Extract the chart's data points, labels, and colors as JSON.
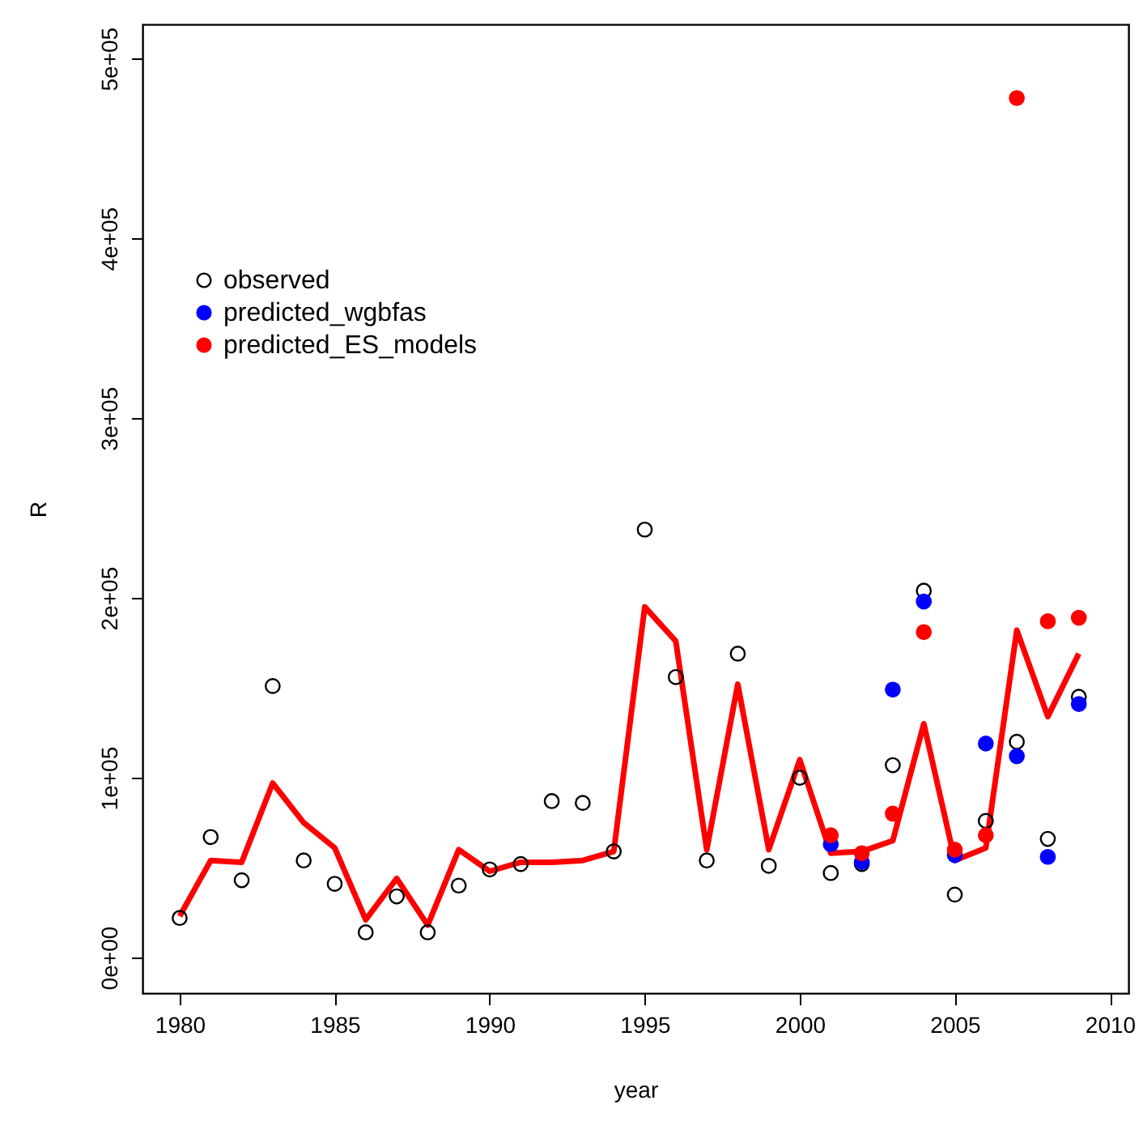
{
  "chart_data": {
    "type": "scatter",
    "xlabel": "year",
    "ylabel": "R",
    "x": [
      1980,
      1981,
      1982,
      1983,
      1984,
      1985,
      1986,
      1987,
      1988,
      1989,
      1990,
      1991,
      1992,
      1993,
      1994,
      1995,
      1996,
      1997,
      1998,
      1999,
      2000,
      2001,
      2002,
      2003,
      2004,
      2005,
      2006,
      2007,
      2008,
      2009
    ],
    "series": [
      {
        "type": "line",
        "marker": "none",
        "color": "#ff0000",
        "values": [
          23000,
          54000,
          53000,
          97000,
          75000,
          61000,
          21000,
          44000,
          18000,
          60000,
          48000,
          53000,
          53000,
          54000,
          59000,
          195000,
          176000,
          60000,
          152000,
          60000,
          110000,
          58000,
          59000,
          65000,
          130000,
          54000,
          61000,
          182000,
          134000,
          169000
        ]
      },
      {
        "name": "observed",
        "color": "#000000",
        "values": [
          22000,
          67000,
          43000,
          151000,
          54000,
          41000,
          14000,
          34000,
          14000,
          40000,
          49000,
          52000,
          87000,
          86000,
          59000,
          238000,
          156000,
          54000,
          169000,
          51000,
          100000,
          47000,
          52000,
          107000,
          204000,
          35000,
          76000,
          120000,
          66000,
          145000
        ]
      },
      {
        "name": "predicted_wgbfas",
        "color": "#0000ff",
        "x": [
          2001,
          2002,
          2003,
          2004,
          2005,
          2006,
          2007,
          2008,
          2009
        ],
        "values": [
          63000,
          53000,
          149000,
          198000,
          57000,
          119000,
          112000,
          56000,
          141000
        ]
      },
      {
        "name": "predicted_ES_models",
        "color": "#ff0000",
        "x": [
          2001,
          2002,
          2003,
          2004,
          2005,
          2006,
          2007,
          2008,
          2009
        ],
        "values": [
          68000,
          58000,
          80000,
          181000,
          60000,
          68000,
          478000,
          187000,
          189000
        ]
      }
    ],
    "xlim": [
      1978.8,
      2010.6
    ],
    "xticks": [
      1980,
      1985,
      1990,
      1995,
      2000,
      2005,
      2010
    ],
    "ylim": [
      -19800,
      519000
    ],
    "yticks": [
      {
        "value": 0,
        "label": "0e+00"
      },
      {
        "value": 100000,
        "label": "1e+05"
      },
      {
        "value": 200000,
        "label": "2e+05"
      },
      {
        "value": 300000,
        "label": "3e+05"
      },
      {
        "value": 400000,
        "label": "4e+05"
      },
      {
        "value": 500000,
        "label": "5e+05"
      }
    ],
    "legend": "top left",
    "marker": "circle",
    "grid": false
  }
}
